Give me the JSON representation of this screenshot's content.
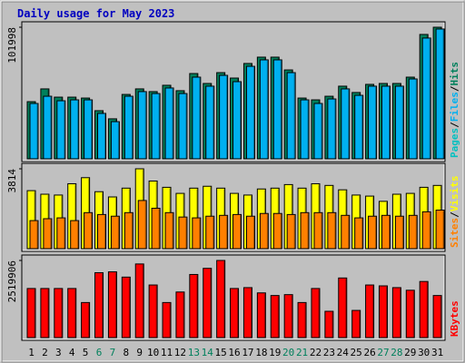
{
  "chart_data": [
    {
      "type": "bar",
      "title": "Daily usage for May 2023",
      "ylim": [
        0,
        101998
      ],
      "yticks": [
        101998
      ],
      "legend_separator": "/",
      "series": [
        {
          "name": "Hits",
          "color": "#00805c",
          "values": [
            44300,
            54200,
            47800,
            47800,
            47100,
            37300,
            31000,
            49900,
            54200,
            52100,
            57000,
            52800,
            66100,
            58400,
            66800,
            62600,
            73900,
            78800,
            78800,
            68900,
            47100,
            45700,
            48500,
            56300,
            51400,
            57700,
            58400,
            58400,
            63300,
            96400,
            101998
          ]
        },
        {
          "name": "Files",
          "color": "#00b0f0",
          "values": [
            42900,
            48500,
            45000,
            45700,
            45700,
            35200,
            28800,
            48500,
            52100,
            50600,
            54900,
            50600,
            63300,
            56300,
            64700,
            59800,
            71700,
            76700,
            76700,
            66800,
            45700,
            42900,
            46400,
            54200,
            49200,
            56300,
            56300,
            56300,
            61900,
            93600,
            100600
          ]
        },
        {
          "name": "Pages",
          "color": "#00c0c0",
          "values": [
            null,
            null,
            null,
            null,
            null,
            null,
            null,
            null,
            null,
            null,
            null,
            null,
            null,
            null,
            null,
            null,
            null,
            null,
            null,
            null,
            null,
            null,
            null,
            null,
            null,
            null,
            null,
            null,
            null,
            null,
            null
          ]
        }
      ]
    },
    {
      "type": "bar",
      "ylim": [
        0,
        3814
      ],
      "yticks": [
        3814
      ],
      "legend_separator": "/",
      "series": [
        {
          "name": "Visits",
          "color": "#ffff00",
          "values": [
            2770,
            2600,
            2560,
            3100,
            3390,
            2720,
            2470,
            2890,
            3814,
            3230,
            2930,
            2640,
            2890,
            2980,
            2890,
            2640,
            2560,
            2850,
            2890,
            3060,
            2890,
            3100,
            3020,
            2810,
            2560,
            2510,
            2260,
            2600,
            2640,
            2930,
            3020
          ]
        },
        {
          "name": "Sites",
          "color": "#ff8000",
          "values": [
            1340,
            1430,
            1470,
            1340,
            1720,
            1630,
            1550,
            1720,
            2300,
            1930,
            1720,
            1510,
            1470,
            1550,
            1590,
            1630,
            1550,
            1680,
            1680,
            1630,
            1720,
            1720,
            1720,
            1590,
            1470,
            1550,
            1590,
            1550,
            1590,
            1760,
            1840
          ]
        }
      ]
    },
    {
      "type": "bar",
      "ylim": [
        0,
        2519906
      ],
      "yticks": [
        2519906
      ],
      "categories": [
        "1",
        "2",
        "3",
        "4",
        "5",
        "6",
        "7",
        "8",
        "9",
        "10",
        "11",
        "12",
        "13",
        "14",
        "15",
        "16",
        "17",
        "18",
        "19",
        "20",
        "21",
        "22",
        "23",
        "24",
        "25",
        "26",
        "27",
        "28",
        "29",
        "30",
        "31"
      ],
      "category_colors": [
        "#000000",
        "#000000",
        "#000000",
        "#000000",
        "#000000",
        "#00805c",
        "#00805c",
        "#000000",
        "#000000",
        "#000000",
        "#000000",
        "#000000",
        "#00805c",
        "#00805c",
        "#000000",
        "#000000",
        "#000000",
        "#000000",
        "#000000",
        "#00805c",
        "#00805c",
        "#000000",
        "#000000",
        "#000000",
        "#000000",
        "#000000",
        "#00805c",
        "#00805c",
        "#000000",
        "#000000",
        "#000000"
      ],
      "series": [
        {
          "name": "KBytes",
          "color": "#ff0000",
          "values": [
            1603600,
            1603600,
            1603600,
            1603600,
            1145400,
            2119000,
            2147600,
            1975800,
            2405300,
            1718100,
            1145400,
            1489000,
            2061700,
            2262200,
            2519906,
            1603600,
            1632200,
            1460400,
            1374500,
            1403100,
            1145400,
            1603600,
            859100,
            1947200,
            887700,
            1718100,
            1689500,
            1632200,
            1546300,
            1832600,
            1374500
          ]
        }
      ]
    }
  ]
}
